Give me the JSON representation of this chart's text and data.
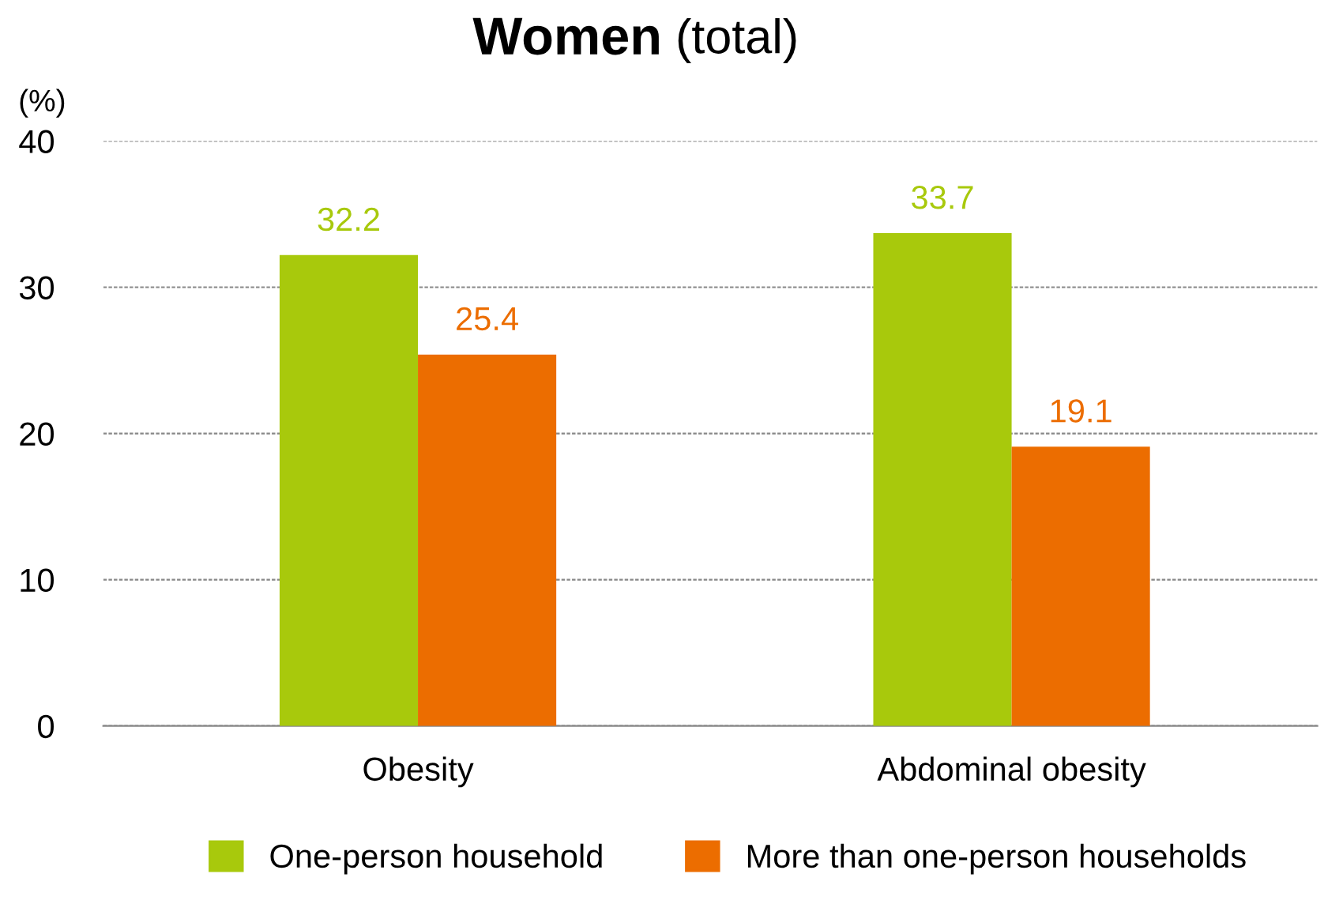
{
  "chart_data": {
    "type": "bar",
    "title": "Women (total)",
    "ylabel": "(%)",
    "categories": [
      "Obesity",
      "Abdominal obesity"
    ],
    "series": [
      {
        "name": "One-person household",
        "color": "#a8c90c",
        "values": [
          32.2,
          33.7
        ]
      },
      {
        "name": "More than one-person households",
        "color": "#ec6d00",
        "values": [
          25.4,
          19.1
        ]
      }
    ],
    "ylim": [
      0,
      40
    ],
    "yticks": [
      0,
      10,
      20,
      30,
      40
    ],
    "grid": "y",
    "legend": "bottom",
    "data_labels": true
  }
}
